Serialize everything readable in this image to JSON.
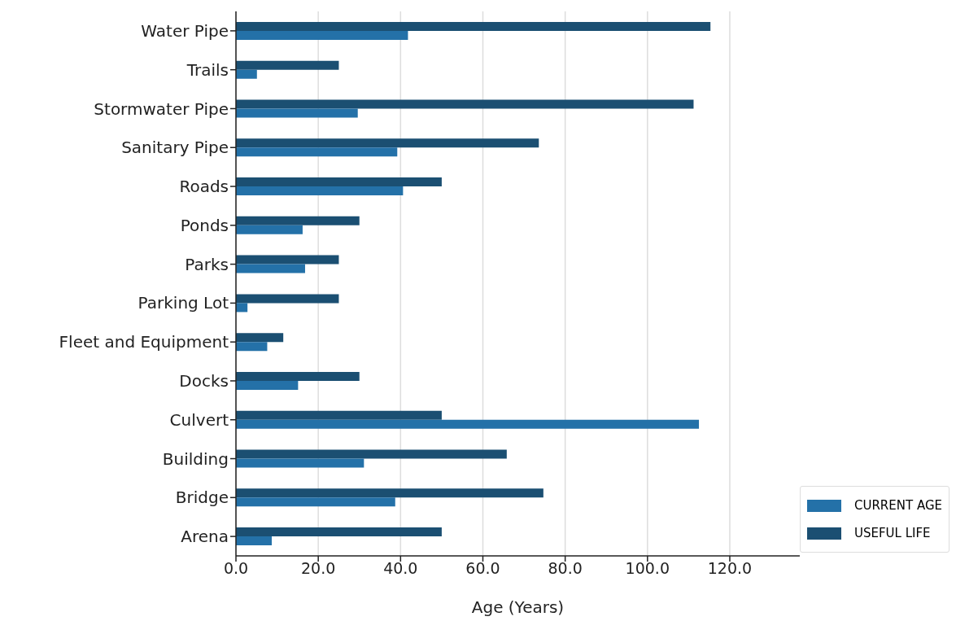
{
  "chart_data": {
    "type": "bar",
    "orientation": "horizontal",
    "xlabel": "Age (Years)",
    "categories": [
      "Water Pipe",
      "Trails",
      "Stormwater Pipe",
      "Sanitary Pipe",
      "Roads",
      "Ponds",
      "Parks",
      "Parking Lot",
      "Fleet and Equipment",
      "Docks",
      "Culvert",
      "Building",
      "Bridge",
      "Arena"
    ],
    "series": [
      {
        "name": "CURRENT AGE",
        "color": "#2471a8",
        "values": [
          41.8,
          5.1,
          29.6,
          39.2,
          40.6,
          16.2,
          16.8,
          2.8,
          7.6,
          15.1,
          112.5,
          31.1,
          38.7,
          8.7
        ]
      },
      {
        "name": "USEFUL LIFE",
        "color": "#1b4f72",
        "values": [
          115.3,
          25,
          111.2,
          73.6,
          50,
          30,
          25,
          25,
          11.5,
          30,
          50,
          65.8,
          74.7,
          50
        ]
      }
    ],
    "xlim": [
      0,
      137
    ],
    "xticks": [
      {
        "value": 0,
        "label": "0.0"
      },
      {
        "value": 20,
        "label": "20.0"
      },
      {
        "value": 40,
        "label": "40.0"
      },
      {
        "value": 60,
        "label": "60.0"
      },
      {
        "value": 80,
        "label": "80.0"
      },
      {
        "value": 100,
        "label": "100.0"
      },
      {
        "value": 120,
        "label": "120.0"
      }
    ],
    "grid": "x",
    "legend": "bottom right"
  }
}
